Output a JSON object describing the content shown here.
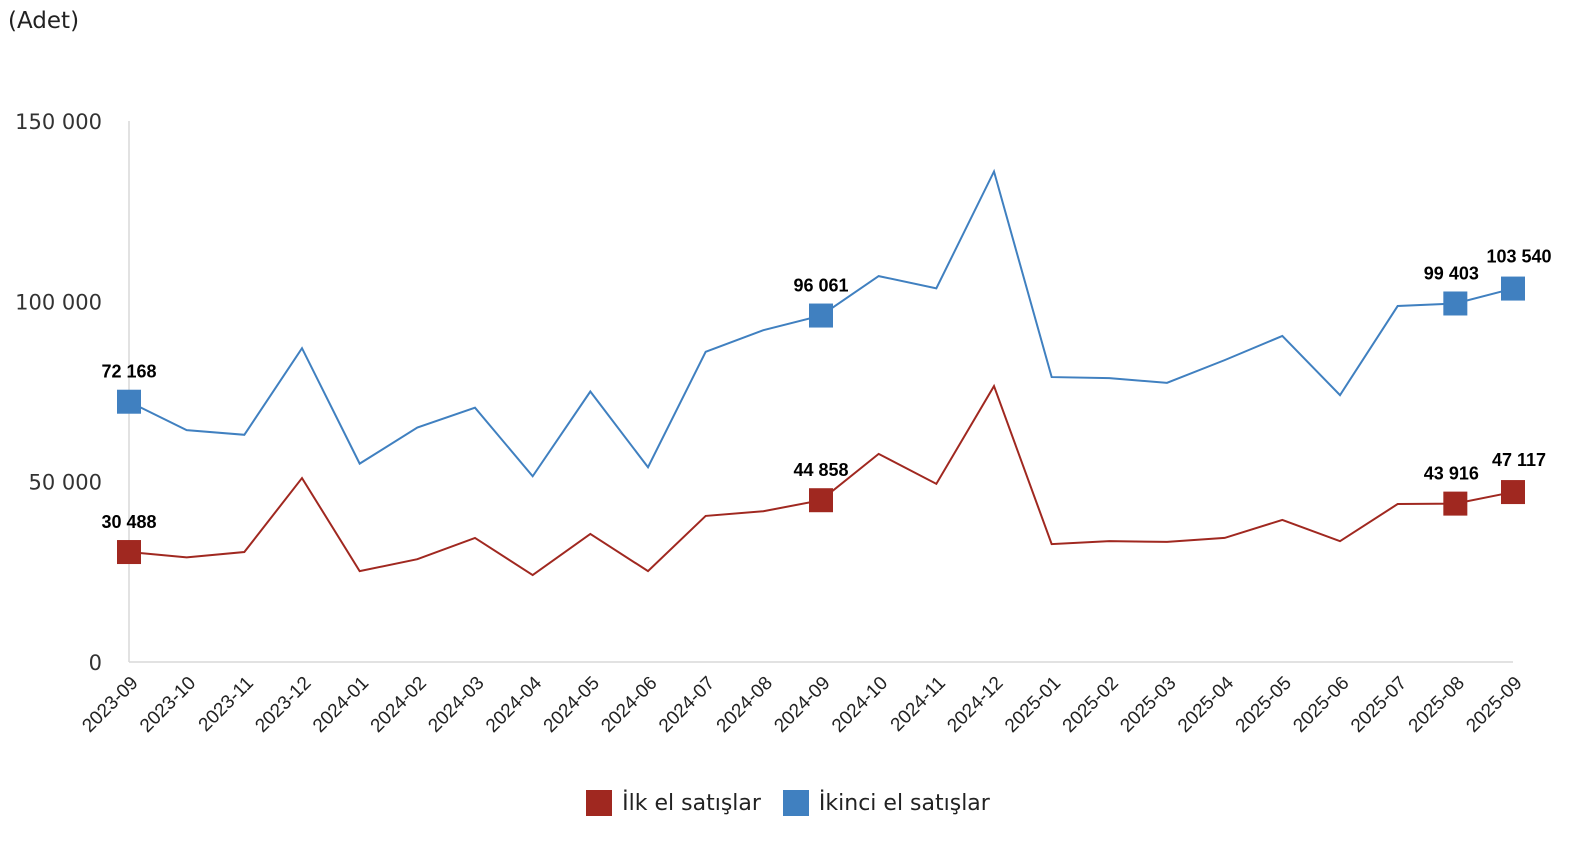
{
  "unit_label": "(Adet)",
  "legend": {
    "items": [
      {
        "label": "İlk el satışlar",
        "color": "#A02820"
      },
      {
        "label": "İkinci el satışlar",
        "color": "#4080C0"
      }
    ]
  },
  "chart_data": {
    "type": "line",
    "title": "",
    "xlabel": "",
    "ylabel": "(Adet)",
    "ylim": [
      0,
      150000
    ],
    "yticks": [
      0,
      50000,
      100000,
      150000
    ],
    "ytick_labels": [
      "0",
      "50 000",
      "100 000",
      "150 000"
    ],
    "grid": false,
    "legend_position": "bottom",
    "categories": [
      "2023-09",
      "2023-10",
      "2023-11",
      "2023-12",
      "2024-01",
      "2024-02",
      "2024-03",
      "2024-04",
      "2024-05",
      "2024-06",
      "2024-07",
      "2024-08",
      "2024-09",
      "2024-10",
      "2024-11",
      "2024-12",
      "2025-01",
      "2025-02",
      "2025-03",
      "2025-04",
      "2025-05",
      "2025-06",
      "2025-07",
      "2025-08",
      "2025-09"
    ],
    "series": [
      {
        "name": "İlk el satışlar",
        "color": "#A02820",
        "values": [
          30488,
          29000,
          30500,
          51000,
          25200,
          28500,
          34400,
          24100,
          35500,
          25200,
          40500,
          41800,
          44858,
          57700,
          49400,
          76500,
          32700,
          33500,
          33300,
          34400,
          39400,
          33500,
          43800,
          43916,
          47117
        ],
        "labeled_points": [
          {
            "index": 0,
            "label": "30 488"
          },
          {
            "index": 12,
            "label": "44 858"
          },
          {
            "index": 23,
            "label": "43 916"
          },
          {
            "index": 24,
            "label": "47 117"
          }
        ]
      },
      {
        "name": "İkinci el satışlar",
        "color": "#4080C0",
        "values": [
          72168,
          64300,
          63000,
          87000,
          55000,
          65000,
          70500,
          51500,
          75000,
          54000,
          86000,
          92000,
          96061,
          107000,
          103600,
          136000,
          79000,
          78700,
          77400,
          83700,
          90400,
          74000,
          98700,
          99403,
          103540
        ],
        "labeled_points": [
          {
            "index": 0,
            "label": "72 168"
          },
          {
            "index": 12,
            "label": "96 061"
          },
          {
            "index": 23,
            "label": "99 403"
          },
          {
            "index": 24,
            "label": "103 540"
          }
        ]
      }
    ]
  }
}
